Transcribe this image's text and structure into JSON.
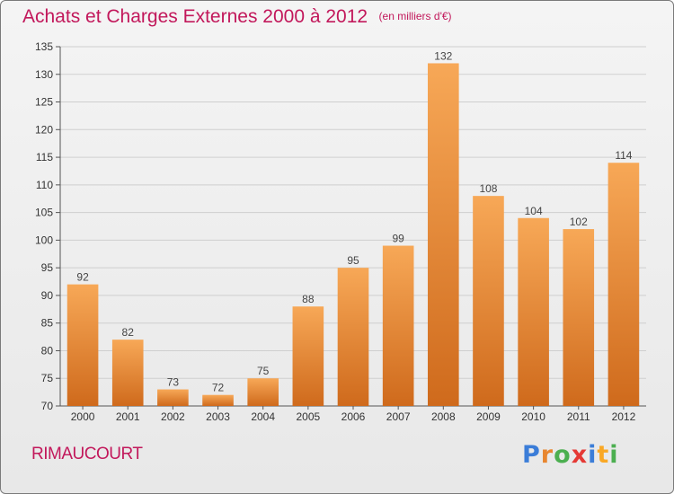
{
  "chart_data": {
    "type": "bar",
    "title": "Achats et Charges Externes 2000 à 2012",
    "unit": "(en milliers d'€)",
    "categories": [
      "2000",
      "2001",
      "2002",
      "2003",
      "2004",
      "2005",
      "2006",
      "2007",
      "2008",
      "2009",
      "2010",
      "2011",
      "2012"
    ],
    "values": [
      92,
      82,
      73,
      72,
      75,
      88,
      95,
      99,
      132,
      108,
      104,
      102,
      114
    ],
    "ylim": [
      70,
      135
    ],
    "yticks": [
      70,
      75,
      80,
      85,
      90,
      95,
      100,
      105,
      110,
      115,
      120,
      125,
      130,
      135
    ],
    "grid": true,
    "bar_color": "#e8862f",
    "bar_color_light": "#f7a857",
    "bar_color_dark": "#cf6a1c"
  },
  "commune": "RIMAUCOURT",
  "brand": {
    "letters": [
      "P",
      "r",
      "o",
      "x",
      "i",
      "t",
      "i"
    ],
    "colors": [
      "#3b7dd8",
      "#e8862f",
      "#4caf50",
      "#e53935",
      "#3b7dd8",
      "#f9a825",
      "#4caf50"
    ]
  }
}
